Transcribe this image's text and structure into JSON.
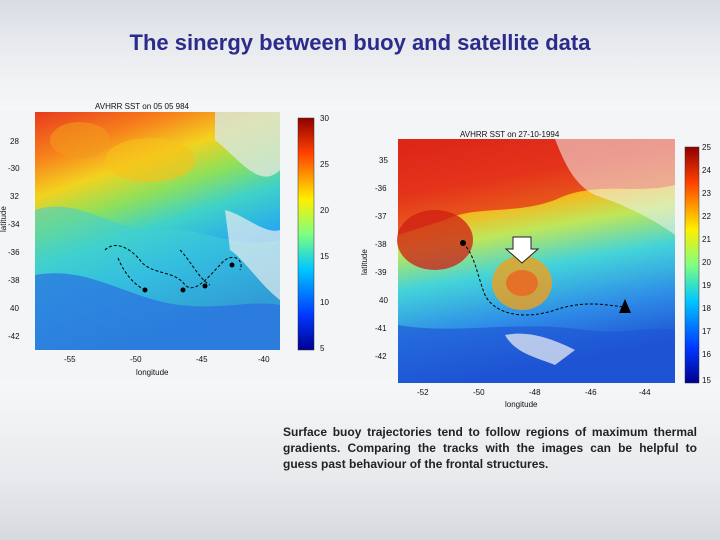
{
  "title": "The sinergy between buoy and satellite data",
  "map_left": {
    "header": "AVHRR SST on 05   05   984",
    "xlabel": "longitude",
    "ylabel": "latitude",
    "lat_ticks": [
      "28",
      "-30",
      "32",
      "-34",
      "-36",
      "-38",
      "40",
      "-42"
    ],
    "lon_ticks": [
      "-55",
      "-50",
      "-45",
      "-40"
    ],
    "colorbar_ticks": [
      "30",
      "25",
      "20",
      "15",
      "10",
      "5"
    ]
  },
  "map_right": {
    "header": "AVHRR SST on 27-10-1994",
    "xlabel": "longitude",
    "ylabel": "latitude",
    "lat_ticks": [
      "35",
      "-36",
      "-37",
      "-38",
      "-39",
      "40",
      "-41",
      "-42"
    ],
    "lon_ticks": [
      "-52",
      "-50",
      "-48",
      "-46",
      "-44"
    ],
    "colorbar_ticks": [
      "25",
      "24",
      "23",
      "22",
      "21",
      "20",
      "19",
      "18",
      "17",
      "16",
      "15"
    ]
  },
  "caption": "Surface buoy trajectories tend to follow regions of maximum thermal gradients. Comparing the tracks with the images can be helpful to guess past behaviour of the frontal structures."
}
